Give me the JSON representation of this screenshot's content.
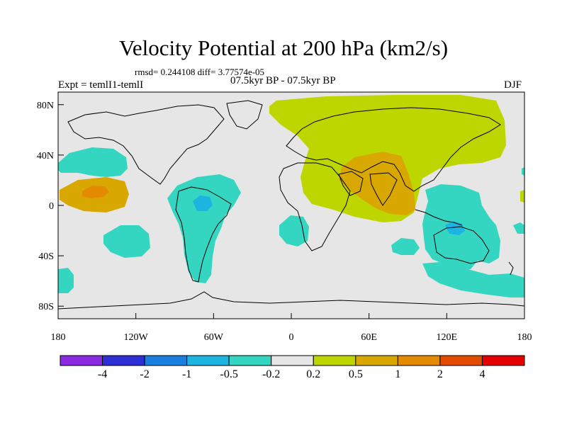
{
  "title": "Velocity Potential at 200 hPa (km2/s)",
  "stats": "rmsd= 0.244108 diff= 3.77574e-05",
  "period": "07.5kyr BP - 07.5kyr BP",
  "expt": "Expt = temlI1-temlI",
  "season": "DJF",
  "map": {
    "projection": "cylindrical equidistant",
    "lon_range": [
      -180,
      180
    ],
    "lat_range": [
      -90,
      90
    ],
    "lat_ticks": [
      {
        "value": 80,
        "label": "80N"
      },
      {
        "value": 40,
        "label": "40N"
      },
      {
        "value": 0,
        "label": "0"
      },
      {
        "value": -40,
        "label": "40S"
      },
      {
        "value": -80,
        "label": "80S"
      }
    ],
    "lon_ticks": [
      {
        "value": -180,
        "label": "180"
      },
      {
        "value": -120,
        "label": "120W"
      },
      {
        "value": -60,
        "label": "60W"
      },
      {
        "value": 0,
        "label": "0"
      },
      {
        "value": 60,
        "label": "60E"
      },
      {
        "value": 120,
        "label": "120E"
      },
      {
        "value": 180,
        "label": "180"
      }
    ],
    "background_color": "#e6e6e6",
    "coastline_color": "#000000"
  },
  "contour_regions": [
    {
      "level": "0.2 to 0.5",
      "color": "#bdd600",
      "area": "Eurasia / Arctic"
    },
    {
      "level": "0.5 to 1",
      "color": "#d9a800",
      "area": "Arabia / India"
    },
    {
      "level": "-0.5 to -0.2",
      "color": "#35d6c1",
      "area": "North Pacific"
    },
    {
      "level": "0.5 to 1",
      "color": "#d9a800",
      "area": "Central Pacific"
    },
    {
      "level": "-0.5 to -0.2",
      "color": "#35d6c1",
      "area": "South America"
    },
    {
      "level": "-1 to -0.5",
      "color": "#1cb4e0",
      "area": "Northern South America"
    },
    {
      "level": "-0.5 to -0.2",
      "color": "#35d6c1",
      "area": "Maritime Continent / Australia"
    },
    {
      "level": "-1 to -0.5",
      "color": "#1cb4e0",
      "area": "Northern Australia"
    },
    {
      "level": "-0.5 to -0.2",
      "color": "#35d6c1",
      "area": "South Atlantic"
    },
    {
      "level": "-0.5 to -0.2",
      "color": "#35d6c1",
      "area": "South Pacific"
    }
  ],
  "colorbar": {
    "colors": [
      "#8a2be2",
      "#2f2fd6",
      "#1a7fe0",
      "#1cb4e0",
      "#35d6c1",
      "#e6e6e6",
      "#bdd600",
      "#d9a800",
      "#e38a00",
      "#e34b00",
      "#e30000"
    ],
    "labels": [
      "-4",
      "-2",
      "-1",
      "-0.5",
      "-0.2",
      "0.2",
      "0.5",
      "1",
      "2",
      "4"
    ]
  }
}
